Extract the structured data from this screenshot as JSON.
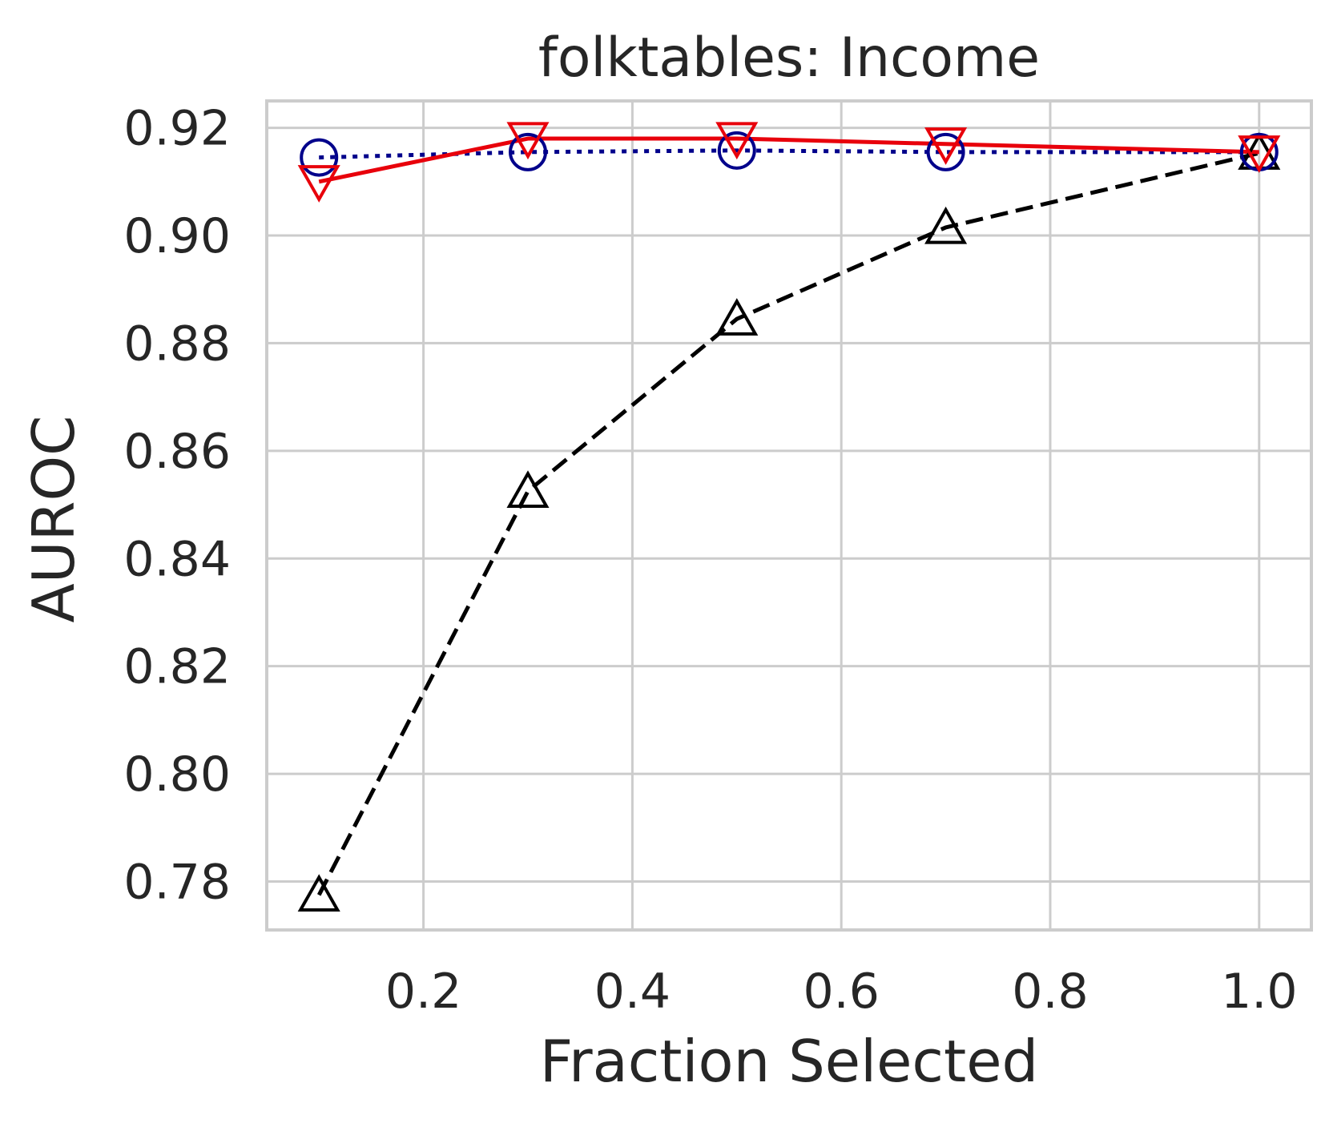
{
  "chart_data": {
    "type": "line",
    "title": "folktables: Income",
    "xlabel": "Fraction Selected",
    "ylabel": "AUROC",
    "xlim": [
      0.05,
      1.05
    ],
    "ylim": [
      0.771,
      0.925
    ],
    "xticks": [
      0.2,
      0.4,
      0.6,
      0.8,
      1.0
    ],
    "xtick_labels": [
      "0.2",
      "0.4",
      "0.6",
      "0.8",
      "1.0"
    ],
    "yticks": [
      0.78,
      0.8,
      0.82,
      0.84,
      0.86,
      0.88,
      0.9,
      0.92
    ],
    "ytick_labels": [
      "0.78",
      "0.80",
      "0.82",
      "0.84",
      "0.86",
      "0.88",
      "0.90",
      "0.92"
    ],
    "grid": true,
    "series": [
      {
        "x": [
          0.1,
          0.3,
          0.5,
          0.7,
          1.0
        ],
        "y": [
          0.7775,
          0.8525,
          0.8845,
          0.9015,
          0.9153
        ],
        "color": "#000000",
        "linestyle": "dashed",
        "marker": "triangle-up"
      },
      {
        "x": [
          0.1,
          0.3,
          0.5,
          0.7,
          1.0
        ],
        "y": [
          0.9145,
          0.9155,
          0.9158,
          0.9155,
          0.9155
        ],
        "color": "#00008b",
        "linestyle": "dotted",
        "marker": "circle"
      },
      {
        "x": [
          0.1,
          0.3,
          0.5,
          0.7,
          1.0
        ],
        "y": [
          0.91,
          0.918,
          0.918,
          0.917,
          0.9155
        ],
        "color": "#e8000b",
        "linestyle": "solid",
        "marker": "triangle-down"
      }
    ]
  }
}
